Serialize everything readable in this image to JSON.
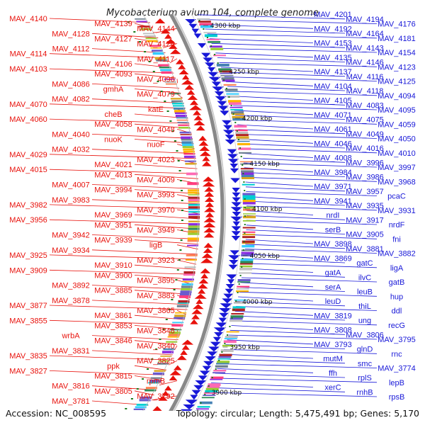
{
  "title": "Mycobacterium avium 104, complete genome",
  "footer": {
    "accession": "Accession: NC_008595",
    "topology": "Topology: circular; Length: 5,475,491 bp; Genes: 5,170"
  },
  "colors": {
    "forward_strand": "#e8120c",
    "reverse_strand": "#1818d8",
    "backbone": "#888888",
    "tick": "#1a7a1a"
  },
  "scale_ticks": [
    {
      "label": "4300 kbp"
    },
    {
      "label": "4250 kbp"
    },
    {
      "label": "4200 kbp"
    },
    {
      "label": "4150 kbp"
    },
    {
      "label": "4100 kbp"
    },
    {
      "label": "4050 kbp"
    },
    {
      "label": "4000 kbp"
    },
    {
      "label": "3950 kbp"
    },
    {
      "label": "3900 kbp"
    }
  ],
  "left_labels": [
    "MAV_4140",
    "MAV_4139",
    "MAV_4144",
    "MAV_4128",
    "MAV_4127",
    "MAV_4124",
    "MAV_4112",
    "MAV_4114",
    "MAV_4117",
    "MAV_4106",
    "MAV_4103",
    "MAV_4093",
    "MAV_4096",
    "MAV_4086",
    "gmhA",
    "MAV_4079",
    "MAV_4082",
    "MAV_4070",
    "katE",
    "cheB",
    "MAV_4060",
    "MAV_4058",
    "MAV_4048",
    "MAV_4040",
    "nuoK",
    "nuoF",
    "MAV_4032",
    "MAV_4029",
    "MAV_4023",
    "MAV_4021",
    "MAV_4015",
    "MAV_4013",
    "MAV_4009",
    "MAV_4007",
    "MAV_3994",
    "MAV_3993",
    "MAV_3983",
    "MAV_3982",
    "MAV_3970",
    "MAV_3969",
    "MAV_3956",
    "MAV_3951",
    "MAV_3949",
    "MAV_3942",
    "MAV_3939",
    "ligB",
    "MAV_3934",
    "MAV_3925",
    "MAV_3923",
    "MAV_3910",
    "MAV_3909",
    "MAV_3900",
    "MAV_3895",
    "MAV_3892",
    "MAV_3885",
    "MAV_3883",
    "MAV_3878",
    "MAV_3877",
    "MAV_3865",
    "MAV_3861",
    "MAV_3855",
    "MAV_3853",
    "MAV_3848",
    "wrbA",
    "MAV_3846",
    "MAV_3840",
    "MAV_3831",
    "MAV_3835",
    "MAV_3825",
    "ppk",
    "MAV_3827",
    "MAV_3815",
    "rpmB",
    "MAV_3816",
    "MAV_3805",
    "MAV_3792",
    "MAV_3781"
  ],
  "right_labels": [
    "MAV_4201",
    "MAV_4194",
    "MAV_4176",
    "MAV_4192",
    "MAV_4164",
    "MAV_4181",
    "MAV_4153",
    "MAV_4143",
    "MAV_4154",
    "MAV_4135",
    "MAV_4146",
    "MAV_4123",
    "MAV_4137",
    "MAV_4116",
    "MAV_4125",
    "MAV_4104",
    "MAV_4118",
    "MAV_4094",
    "MAV_4105",
    "MAV_4083",
    "MAV_4095",
    "MAV_4071",
    "MAV_4075",
    "MAV_4059",
    "MAV_4061",
    "MAV_4049",
    "MAV_4050",
    "MAV_4046",
    "MAV_4016",
    "MAV_4010",
    "MAV_4008",
    "MAV_3996",
    "MAV_3997",
    "MAV_3984",
    "MAV_3986",
    "MAV_3968",
    "MAV_3971",
    "MAV_3957",
    "pcaC",
    "MAV_3941",
    "MAV_3935",
    "MAV_3931",
    "nrdI",
    "MAV_3917",
    "nrdF",
    "serB",
    "MAV_3905",
    "fni",
    "MAV_3898",
    "MAV_3881",
    "MAV_3882",
    "MAV_3869",
    "gatC",
    "ligA",
    "gatA",
    "ilvC",
    "gatB",
    "serA",
    "leuB",
    "hup",
    "leuD",
    "thiL",
    "ddl",
    "MAV_3819",
    "ung",
    "recG",
    "MAV_3808",
    "MAV_3806",
    "MAV_3795",
    "MAV_3793",
    "glnD",
    "rnc",
    "mutM",
    "smc",
    "MAV_3774",
    "ffh",
    "rplS",
    "lepB",
    "xerC",
    "rnhB",
    "rpsB"
  ]
}
